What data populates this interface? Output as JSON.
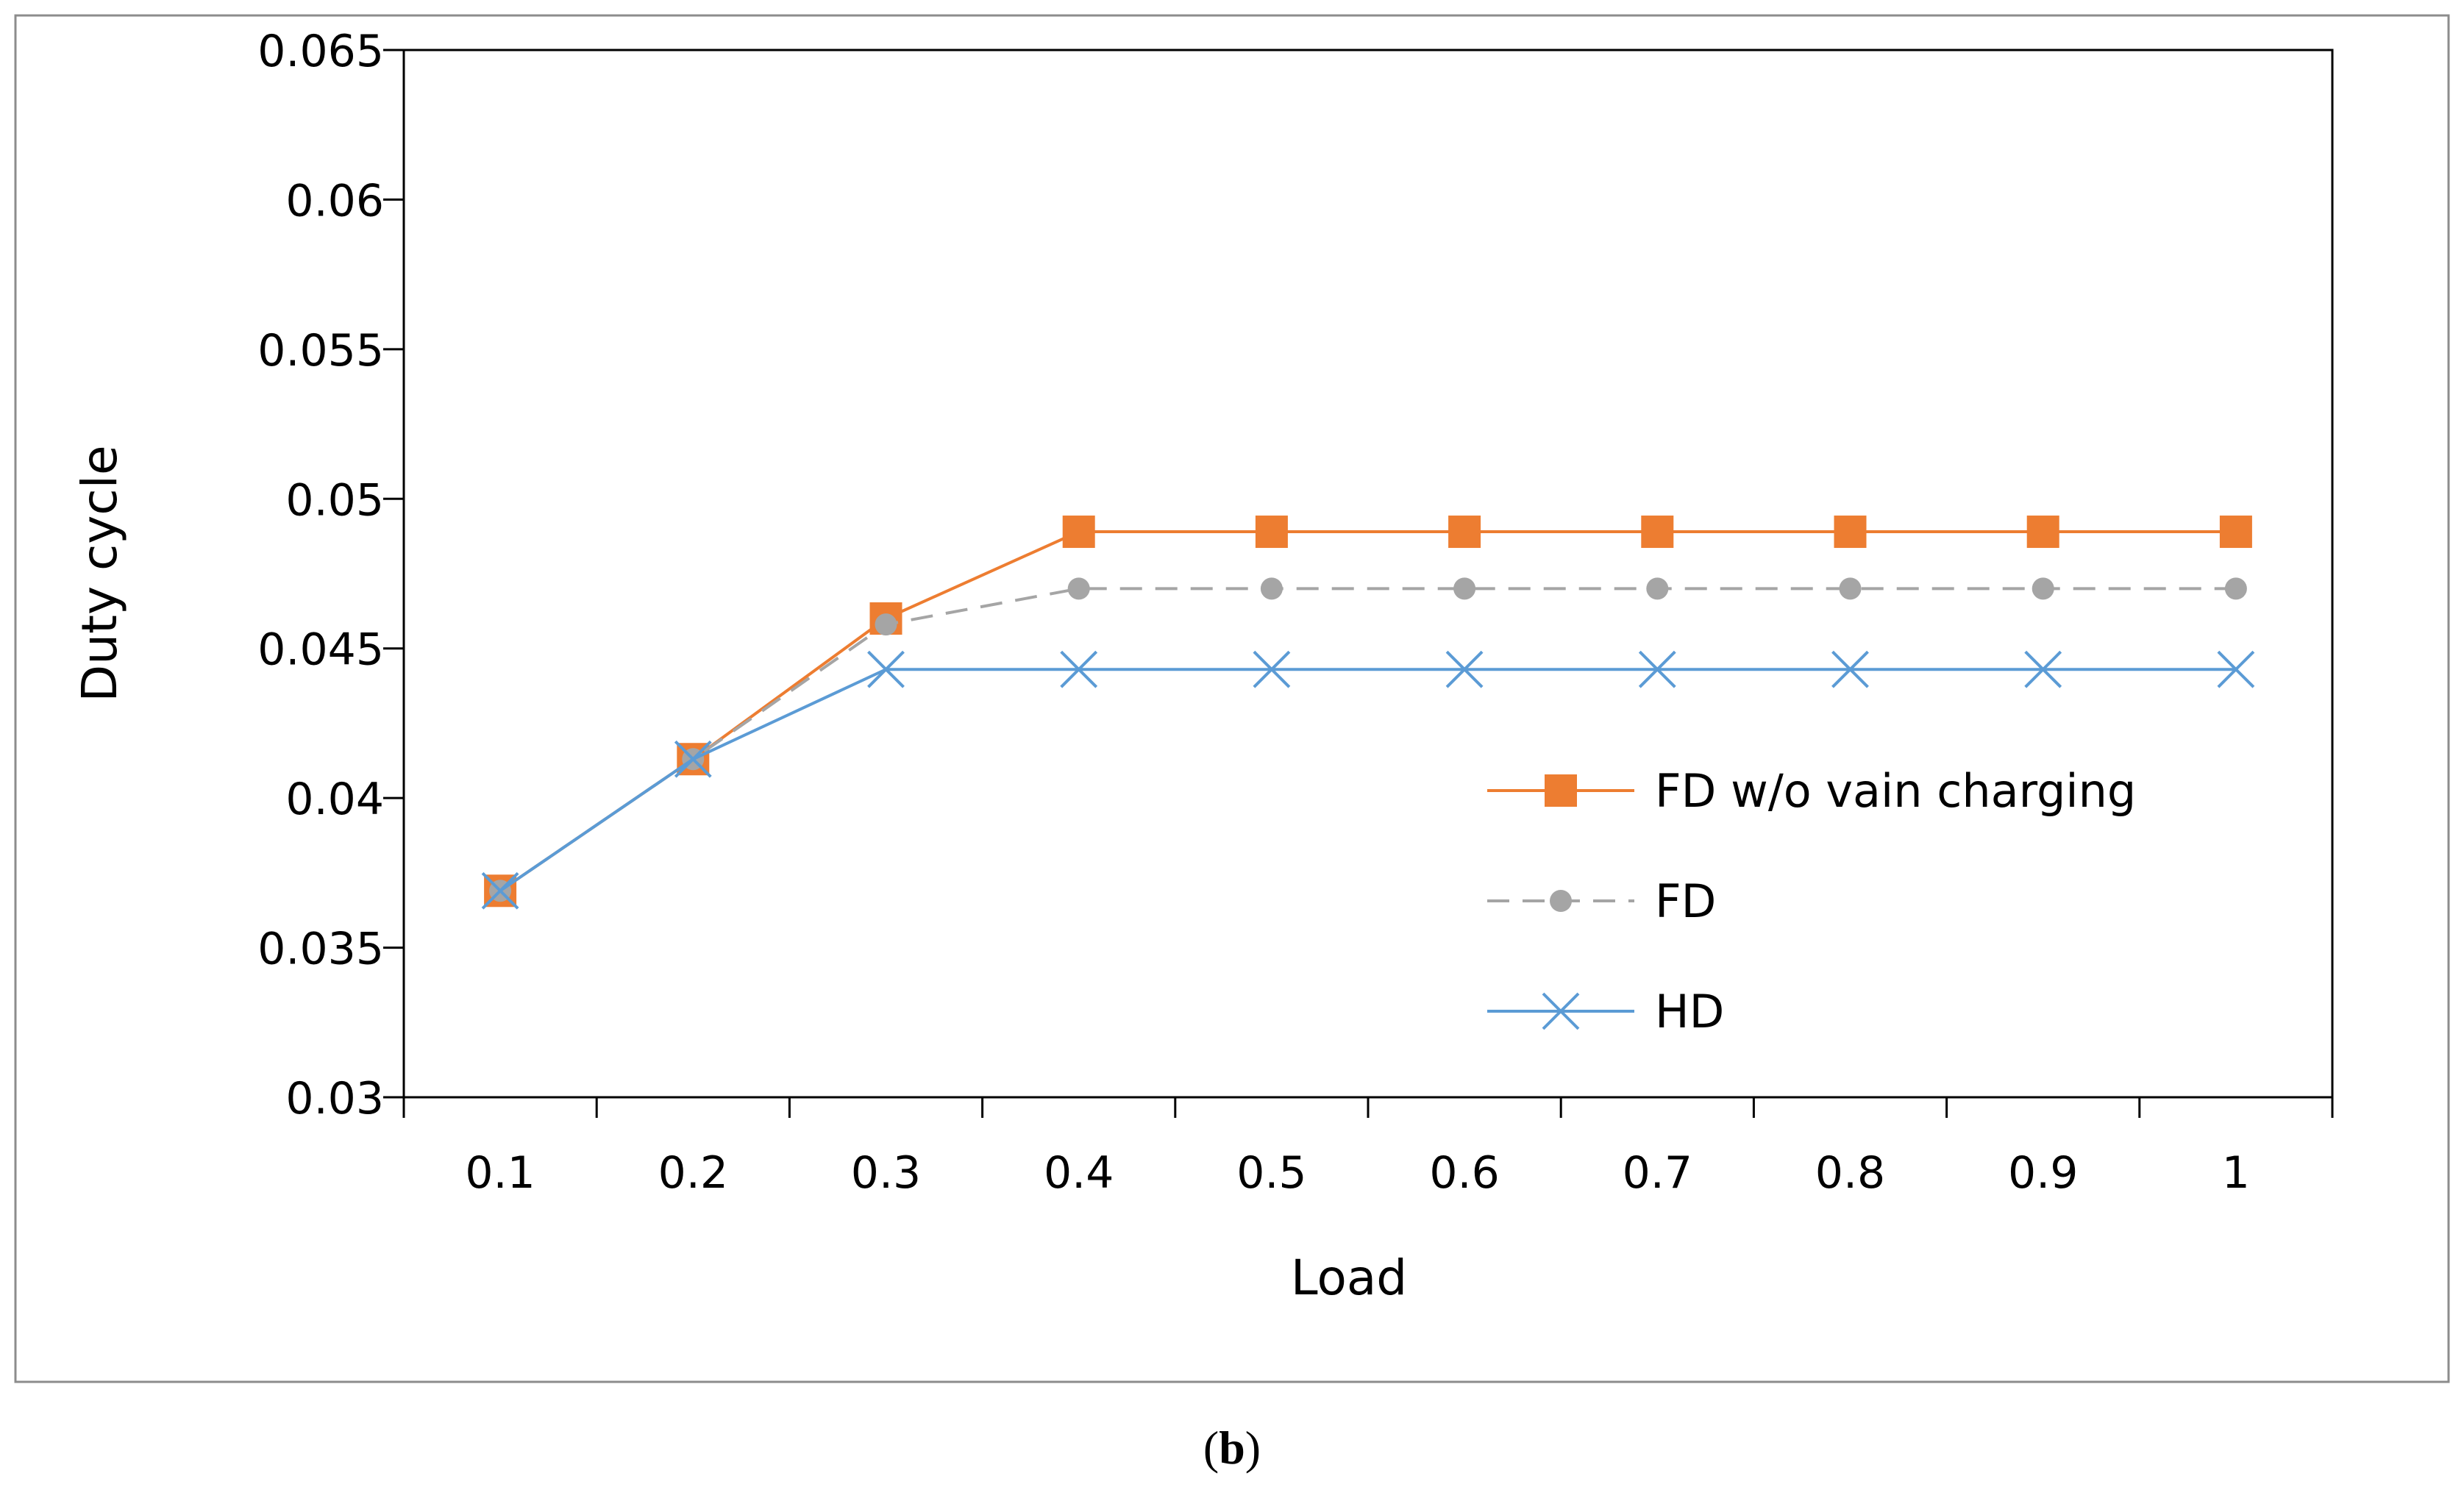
{
  "chart_data": {
    "type": "line",
    "title": "",
    "xlabel": "Load",
    "ylabel": "Duty cycle",
    "categories": [
      "0.1",
      "0.2",
      "0.3",
      "0.4",
      "0.5",
      "0.6",
      "0.7",
      "0.8",
      "0.9",
      "1"
    ],
    "ylim": [
      0.03,
      0.065
    ],
    "yticks": [
      "0.03",
      "0.035",
      "0.04",
      "0.045",
      "0.05",
      "0.055",
      "0.06",
      "0.065"
    ],
    "grid": false,
    "legend_position": "right",
    "series": [
      {
        "name": "FD w/o vain charging",
        "color": "#ED7D31",
        "marker": "square",
        "dash": "solid",
        "values": [
          0.0369,
          0.0413,
          0.046,
          0.0489,
          0.0489,
          0.0489,
          0.0489,
          0.0489,
          0.0489,
          0.0489
        ]
      },
      {
        "name": "FD",
        "color": "#A5A5A5",
        "marker": "circle",
        "dash": "dashed",
        "values": [
          0.0369,
          0.0413,
          0.0458,
          0.047,
          0.047,
          0.047,
          0.047,
          0.047,
          0.047,
          0.047
        ]
      },
      {
        "name": "HD",
        "color": "#5B9BD5",
        "marker": "x",
        "dash": "solid",
        "values": [
          0.0369,
          0.0413,
          0.0443,
          0.0443,
          0.0443,
          0.0443,
          0.0443,
          0.0443,
          0.0443,
          0.0443
        ]
      }
    ]
  },
  "caption": {
    "open": "(",
    "letter": "b",
    "close": ")"
  }
}
